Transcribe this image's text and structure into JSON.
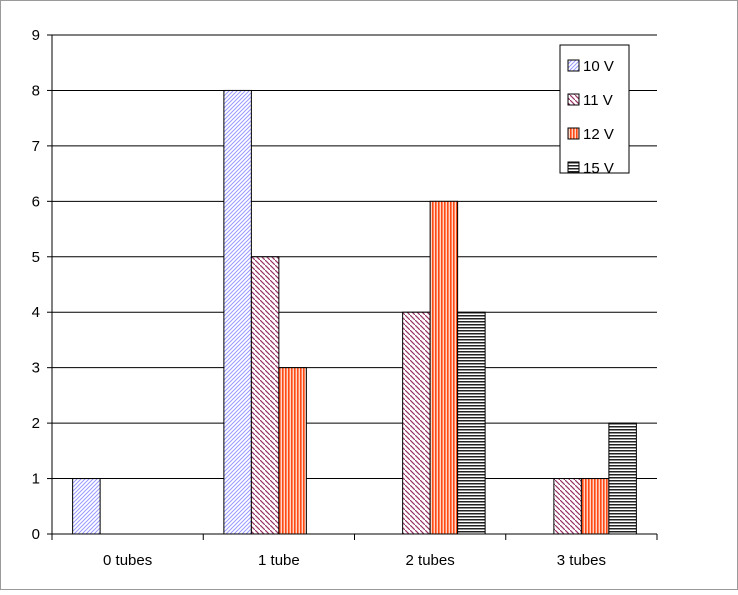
{
  "chart_data": {
    "type": "bar",
    "title": "",
    "xlabel": "",
    "ylabel": "",
    "categories": [
      "0 tubes",
      "1 tube",
      "2 tubes",
      "3 tubes"
    ],
    "ylim": [
      0,
      9
    ],
    "yticks": [
      "0",
      "1",
      "2",
      "3",
      "4",
      "5",
      "6",
      "7",
      "8",
      "9"
    ],
    "grid": true,
    "legend_position": "top-right",
    "series": [
      {
        "name": "10 V",
        "values": [
          1,
          8,
          0,
          0
        ],
        "color": "#9999ff",
        "pattern": "diagonal-up"
      },
      {
        "name": "11 V",
        "values": [
          0,
          5,
          4,
          1
        ],
        "color": "#993366",
        "pattern": "diagonal-down"
      },
      {
        "name": "12 V",
        "values": [
          0,
          3,
          6,
          1
        ],
        "color": "#ff5a2a",
        "pattern": "vertical"
      },
      {
        "name": "15 V",
        "values": [
          0,
          0,
          4,
          2
        ],
        "color": "#222222",
        "pattern": "horizontal"
      }
    ]
  }
}
